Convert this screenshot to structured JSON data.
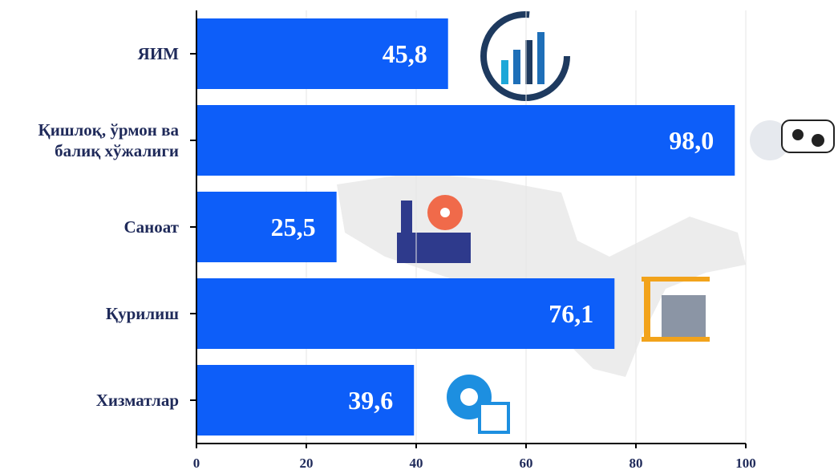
{
  "chart_data": {
    "type": "bar",
    "orientation": "horizontal",
    "categories": [
      "ЯИМ",
      "Қишлоқ, ўрмон ва балиқ хўжалиги",
      "Саноат",
      "Қурилиш",
      "Хизматлар"
    ],
    "values": [
      45.8,
      98.0,
      25.5,
      76.1,
      39.6
    ],
    "value_labels": [
      "45,8",
      "98,0",
      "25,5",
      "76,1",
      "39,6"
    ],
    "color": "#0d5ef9",
    "xlim": [
      0,
      100
    ],
    "xticks": [
      0,
      20,
      40,
      60,
      80,
      100
    ],
    "grid": true
  }
}
